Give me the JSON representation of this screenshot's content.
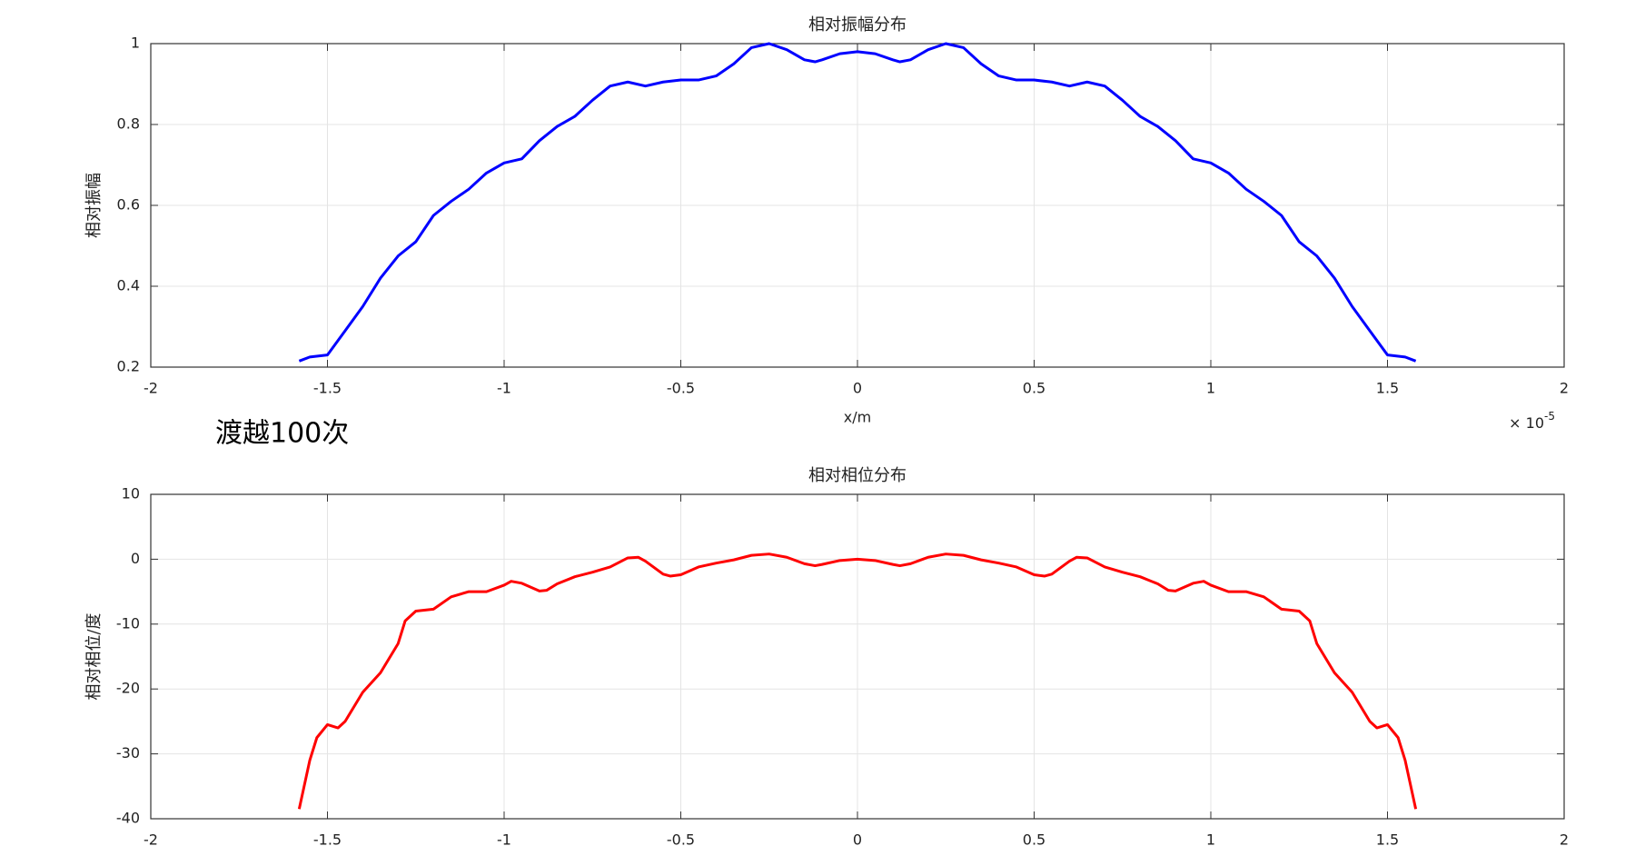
{
  "chart_data": [
    {
      "type": "line",
      "title": "相对振幅分布",
      "ylabel": "相对振幅",
      "xlabel": "x/m",
      "x_scale": {
        "base": "× 10",
        "exponent": "-5"
      },
      "annotation": "渡越100次",
      "x": [
        -1.58,
        -1.55,
        -1.5,
        -1.45,
        -1.4,
        -1.35,
        -1.3,
        -1.25,
        -1.2,
        -1.15,
        -1.1,
        -1.05,
        -1.0,
        -0.95,
        -0.9,
        -0.85,
        -0.8,
        -0.75,
        -0.7,
        -0.65,
        -0.6,
        -0.55,
        -0.5,
        -0.45,
        -0.4,
        -0.35,
        -0.3,
        -0.25,
        -0.2,
        -0.15,
        -0.12,
        -0.1,
        -0.05,
        0,
        0.05,
        0.1,
        0.12,
        0.15,
        0.2,
        0.25,
        0.3,
        0.35,
        0.4,
        0.45,
        0.5,
        0.55,
        0.6,
        0.65,
        0.7,
        0.75,
        0.8,
        0.85,
        0.9,
        0.95,
        1.0,
        1.05,
        1.1,
        1.15,
        1.2,
        1.25,
        1.3,
        1.35,
        1.4,
        1.45,
        1.5,
        1.55,
        1.58
      ],
      "series": [
        {
          "color": "#0000ff",
          "values": [
            0.215,
            0.225,
            0.23,
            0.29,
            0.35,
            0.42,
            0.475,
            0.51,
            0.575,
            0.61,
            0.64,
            0.68,
            0.705,
            0.715,
            0.76,
            0.795,
            0.82,
            0.86,
            0.895,
            0.905,
            0.895,
            0.905,
            0.91,
            0.91,
            0.92,
            0.95,
            0.99,
            1.0,
            0.985,
            0.96,
            0.955,
            0.96,
            0.975,
            0.98,
            0.975,
            0.96,
            0.955,
            0.96,
            0.985,
            1.0,
            0.99,
            0.95,
            0.92,
            0.91,
            0.91,
            0.905,
            0.895,
            0.905,
            0.895,
            0.86,
            0.82,
            0.795,
            0.76,
            0.715,
            0.705,
            0.68,
            0.64,
            0.61,
            0.575,
            0.51,
            0.475,
            0.42,
            0.35,
            0.29,
            0.23,
            0.225,
            0.215
          ]
        }
      ],
      "xlim": [
        -2,
        2
      ],
      "xticks": [
        -2,
        -1.5,
        -1,
        -0.5,
        0,
        0.5,
        1,
        1.5,
        2
      ],
      "ylim": [
        0.2,
        1
      ],
      "yticks": [
        0.2,
        0.4,
        0.6,
        0.8,
        1
      ],
      "grid": true
    },
    {
      "type": "line",
      "title": "相对相位分布",
      "ylabel": "相对相位/度",
      "x": [
        -1.58,
        -1.55,
        -1.53,
        -1.5,
        -1.47,
        -1.45,
        -1.4,
        -1.35,
        -1.3,
        -1.28,
        -1.25,
        -1.2,
        -1.15,
        -1.1,
        -1.05,
        -1.0,
        -0.98,
        -0.95,
        -0.9,
        -0.88,
        -0.85,
        -0.8,
        -0.75,
        -0.7,
        -0.65,
        -0.62,
        -0.6,
        -0.55,
        -0.53,
        -0.5,
        -0.45,
        -0.4,
        -0.35,
        -0.3,
        -0.25,
        -0.2,
        -0.15,
        -0.12,
        -0.1,
        -0.05,
        0,
        0.05,
        0.1,
        0.12,
        0.15,
        0.2,
        0.25,
        0.3,
        0.35,
        0.4,
        0.45,
        0.5,
        0.53,
        0.55,
        0.6,
        0.62,
        0.65,
        0.7,
        0.75,
        0.8,
        0.85,
        0.88,
        0.9,
        0.95,
        0.98,
        1.0,
        1.05,
        1.1,
        1.15,
        1.2,
        1.25,
        1.28,
        1.3,
        1.35,
        1.4,
        1.45,
        1.47,
        1.5,
        1.53,
        1.55,
        1.58
      ],
      "series": [
        {
          "color": "#ff0000",
          "values": [
            -38.5,
            -31,
            -27.5,
            -25.5,
            -26,
            -25,
            -20.5,
            -17.5,
            -13,
            -9.5,
            -8.0,
            -7.7,
            -5.8,
            -5,
            -5.0,
            -4,
            -3.4,
            -3.7,
            -4.9,
            -4.8,
            -3.8,
            -2.7,
            -2.0,
            -1.2,
            0.2,
            0.3,
            -0.3,
            -2.3,
            -2.6,
            -2.4,
            -1.2,
            -0.6,
            -0.1,
            0.6,
            0.8,
            0.3,
            -0.7,
            -1.0,
            -0.8,
            -0.2,
            0,
            -0.2,
            -0.8,
            -1.0,
            -0.7,
            0.3,
            0.8,
            0.6,
            -0.1,
            -0.6,
            -1.2,
            -2.4,
            -2.6,
            -2.3,
            -0.3,
            0.3,
            0.2,
            -1.2,
            -2.0,
            -2.7,
            -3.8,
            -4.8,
            -4.9,
            -3.7,
            -3.4,
            -4,
            -5.0,
            -5,
            -5.8,
            -7.7,
            -8.0,
            -9.5,
            -13,
            -17.5,
            -20.5,
            -25,
            -26,
            -25.5,
            -27.5,
            -31,
            -38.5
          ]
        }
      ],
      "xlim": [
        -2,
        2
      ],
      "xticks": [
        -2,
        -1.5,
        -1,
        -0.5,
        0,
        0.5,
        1,
        1.5,
        2
      ],
      "ylim": [
        -40,
        10
      ],
      "yticks": [
        -40,
        -30,
        -20,
        -10,
        0,
        10
      ],
      "grid": true
    }
  ]
}
